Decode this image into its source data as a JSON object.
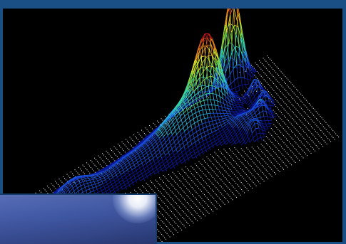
{
  "figure": {
    "plot_type": "3d-wireframe-surface",
    "colormap": [
      "#0a1aa0",
      "#1b4fd8",
      "#2ab0e0",
      "#3cd8a0",
      "#8ee03a",
      "#e6e02a",
      "#e07a1a",
      "#c8141a"
    ],
    "background_color": "#000000",
    "frame_color": "#1a4f86",
    "grid_color": "#dcdcdc"
  },
  "inset_panel": {
    "color": "#4258a6"
  }
}
